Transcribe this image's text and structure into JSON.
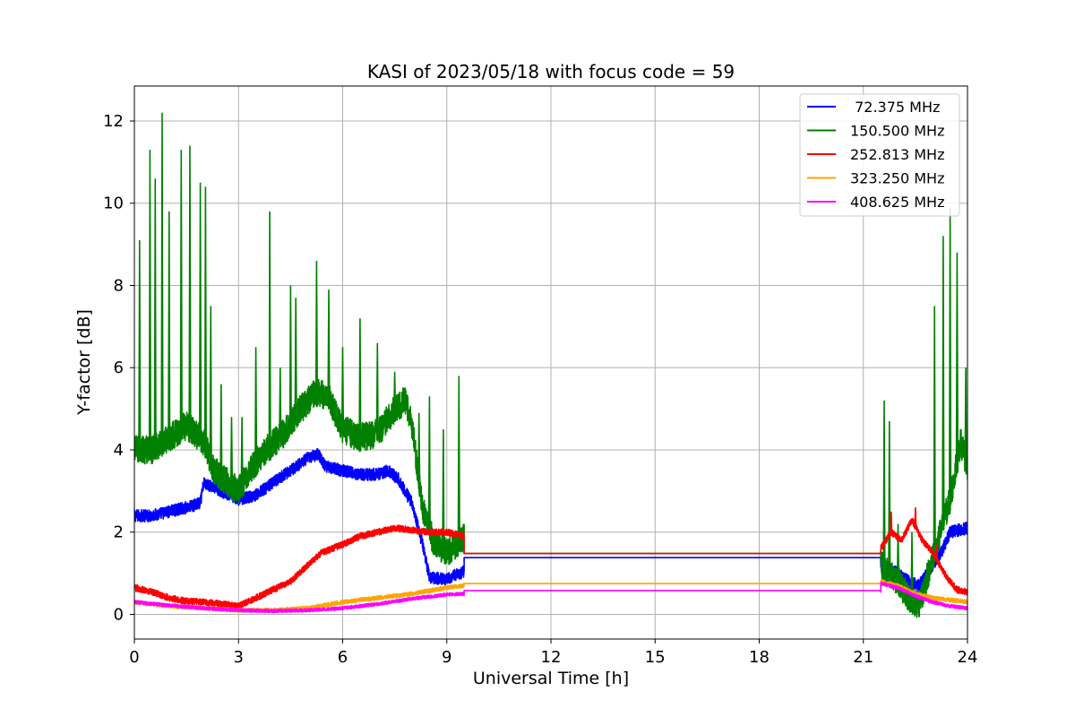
{
  "chart_data": {
    "type": "line",
    "title": "KASI of 2023/05/18 with focus code = 59",
    "xlabel": "Universal Time [h]",
    "ylabel": "Y-factor [dB]",
    "xlim": [
      0,
      24
    ],
    "ylim": [
      -0.6,
      12.85
    ],
    "xticks": [
      0,
      3,
      6,
      9,
      12,
      15,
      18,
      21,
      24
    ],
    "yticks": [
      0,
      2,
      4,
      6,
      8,
      10,
      12
    ],
    "grid": true,
    "legend_position": "top-right",
    "gap_interval": [
      9.5,
      21.5
    ],
    "series": [
      {
        "name": " 72.375 MHz",
        "color": "#0000ff",
        "noise": 0.15,
        "spikes": [],
        "points": [
          [
            0,
            2.4
          ],
          [
            0.5,
            2.4
          ],
          [
            1,
            2.5
          ],
          [
            1.5,
            2.6
          ],
          [
            1.9,
            2.7
          ],
          [
            2.0,
            3.2
          ],
          [
            2.5,
            3.0
          ],
          [
            3.0,
            2.8
          ],
          [
            3.5,
            2.9
          ],
          [
            4.0,
            3.2
          ],
          [
            4.5,
            3.5
          ],
          [
            5.0,
            3.8
          ],
          [
            5.3,
            3.9
          ],
          [
            5.5,
            3.6
          ],
          [
            6.0,
            3.5
          ],
          [
            6.5,
            3.4
          ],
          [
            7.0,
            3.4
          ],
          [
            7.3,
            3.5
          ],
          [
            7.6,
            3.3
          ],
          [
            8.0,
            2.7
          ],
          [
            8.3,
            1.7
          ],
          [
            8.5,
            0.9
          ],
          [
            9.0,
            0.85
          ],
          [
            9.5,
            1.05
          ],
          [
            9.5,
            1.38
          ],
          [
            21.5,
            1.38
          ],
          [
            21.5,
            1.2
          ],
          [
            22.0,
            1.0
          ],
          [
            22.3,
            0.8
          ],
          [
            22.6,
            0.7
          ],
          [
            23.0,
            1.2
          ],
          [
            23.3,
            1.6
          ],
          [
            23.5,
            2.0
          ],
          [
            24.0,
            2.1
          ]
        ]
      },
      {
        "name": "150.500 MHz",
        "color": "#008000",
        "noise": 0.35,
        "spikes": [
          [
            0.15,
            9.1
          ],
          [
            0.45,
            11.3
          ],
          [
            0.6,
            10.6
          ],
          [
            0.8,
            12.2
          ],
          [
            1.0,
            9.8
          ],
          [
            1.35,
            11.3
          ],
          [
            1.6,
            11.4
          ],
          [
            1.9,
            10.5
          ],
          [
            2.05,
            10.4
          ],
          [
            2.2,
            7.5
          ],
          [
            2.5,
            5.6
          ],
          [
            2.8,
            4.8
          ],
          [
            3.1,
            4.8
          ],
          [
            3.5,
            6.5
          ],
          [
            3.9,
            9.8
          ],
          [
            4.2,
            6.0
          ],
          [
            4.5,
            8.0
          ],
          [
            4.65,
            7.7
          ],
          [
            5.25,
            8.6
          ],
          [
            5.6,
            7.9
          ],
          [
            6.0,
            6.5
          ],
          [
            6.5,
            7.2
          ],
          [
            7.0,
            6.6
          ],
          [
            7.5,
            5.9
          ],
          [
            8.2,
            4.9
          ],
          [
            8.5,
            5.3
          ],
          [
            8.9,
            4.5
          ],
          [
            9.35,
            5.8
          ],
          [
            21.6,
            5.2
          ],
          [
            21.75,
            4.7
          ],
          [
            22.0,
            2.2
          ],
          [
            22.4,
            2.0
          ],
          [
            23.05,
            7.5
          ],
          [
            23.3,
            9.2
          ],
          [
            23.5,
            9.9
          ],
          [
            23.7,
            8.8
          ],
          [
            23.95,
            6.0
          ]
        ],
        "points": [
          [
            0,
            4.0
          ],
          [
            0.5,
            4.0
          ],
          [
            1,
            4.3
          ],
          [
            1.5,
            4.6
          ],
          [
            2.0,
            4.2
          ],
          [
            2.3,
            3.5
          ],
          [
            2.7,
            3.2
          ],
          [
            3.0,
            3.0
          ],
          [
            3.3,
            3.5
          ],
          [
            3.8,
            4.0
          ],
          [
            4.3,
            4.4
          ],
          [
            4.8,
            5.0
          ],
          [
            5.2,
            5.4
          ],
          [
            5.6,
            5.3
          ],
          [
            6.0,
            4.5
          ],
          [
            6.5,
            4.3
          ],
          [
            7.0,
            4.4
          ],
          [
            7.5,
            5.0
          ],
          [
            7.8,
            5.2
          ],
          [
            8.0,
            4.6
          ],
          [
            8.3,
            2.6
          ],
          [
            8.6,
            1.8
          ],
          [
            9.0,
            1.5
          ],
          [
            9.5,
            1.9
          ],
          [
            9.5,
            1.48
          ],
          [
            21.5,
            1.48
          ],
          [
            21.5,
            1.2
          ],
          [
            22.0,
            0.8
          ],
          [
            22.3,
            0.4
          ],
          [
            22.6,
            0.2
          ],
          [
            23.0,
            1.4
          ],
          [
            23.5,
            2.8
          ],
          [
            23.8,
            4.2
          ],
          [
            24.0,
            3.6
          ]
        ]
      },
      {
        "name": "252.813 MHz",
        "color": "#ff0000",
        "noise": 0.08,
        "spikes": [
          [
            21.8,
            2.5
          ],
          [
            22.5,
            2.6
          ],
          [
            23.1,
            1.7
          ]
        ],
        "points": [
          [
            0,
            0.65
          ],
          [
            0.5,
            0.55
          ],
          [
            1,
            0.4
          ],
          [
            1.5,
            0.32
          ],
          [
            2.0,
            0.3
          ],
          [
            2.5,
            0.25
          ],
          [
            3.0,
            0.2
          ],
          [
            3.5,
            0.4
          ],
          [
            4.0,
            0.6
          ],
          [
            4.5,
            0.8
          ],
          [
            5.0,
            1.2
          ],
          [
            5.4,
            1.5
          ],
          [
            6.0,
            1.7
          ],
          [
            6.5,
            1.9
          ],
          [
            7.0,
            2.0
          ],
          [
            7.5,
            2.1
          ],
          [
            8.0,
            2.05
          ],
          [
            8.5,
            2.0
          ],
          [
            9.0,
            2.0
          ],
          [
            9.5,
            1.9
          ],
          [
            9.5,
            1.48
          ],
          [
            21.5,
            1.48
          ],
          [
            21.5,
            1.6
          ],
          [
            21.8,
            2.0
          ],
          [
            22.1,
            1.8
          ],
          [
            22.4,
            2.3
          ],
          [
            22.7,
            1.8
          ],
          [
            23.0,
            1.5
          ],
          [
            23.4,
            0.9
          ],
          [
            23.7,
            0.6
          ],
          [
            24.0,
            0.55
          ]
        ]
      },
      {
        "name": "323.250 MHz",
        "color": "#ffa500",
        "noise": 0.05,
        "spikes": [],
        "points": [
          [
            0,
            0.3
          ],
          [
            1,
            0.2
          ],
          [
            2,
            0.15
          ],
          [
            3,
            0.1
          ],
          [
            4,
            0.1
          ],
          [
            5,
            0.15
          ],
          [
            6,
            0.3
          ],
          [
            7,
            0.4
          ],
          [
            8,
            0.5
          ],
          [
            9,
            0.65
          ],
          [
            9.5,
            0.7
          ],
          [
            9.5,
            0.75
          ],
          [
            21.5,
            0.75
          ],
          [
            21.5,
            0.8
          ],
          [
            22.0,
            0.7
          ],
          [
            22.5,
            0.5
          ],
          [
            23.0,
            0.4
          ],
          [
            23.5,
            0.35
          ],
          [
            24.0,
            0.3
          ]
        ]
      },
      {
        "name": "408.625 MHz",
        "color": "#ff00ff",
        "noise": 0.04,
        "spikes": [],
        "points": [
          [
            0,
            0.3
          ],
          [
            1,
            0.22
          ],
          [
            2,
            0.15
          ],
          [
            3,
            0.1
          ],
          [
            4,
            0.08
          ],
          [
            5,
            0.1
          ],
          [
            6,
            0.15
          ],
          [
            7,
            0.25
          ],
          [
            8,
            0.38
          ],
          [
            9,
            0.48
          ],
          [
            9.5,
            0.5
          ],
          [
            9.5,
            0.58
          ],
          [
            21.5,
            0.58
          ],
          [
            21.5,
            0.75
          ],
          [
            22.0,
            0.65
          ],
          [
            22.5,
            0.45
          ],
          [
            23.0,
            0.3
          ],
          [
            23.5,
            0.2
          ],
          [
            24.0,
            0.15
          ]
        ]
      }
    ]
  }
}
